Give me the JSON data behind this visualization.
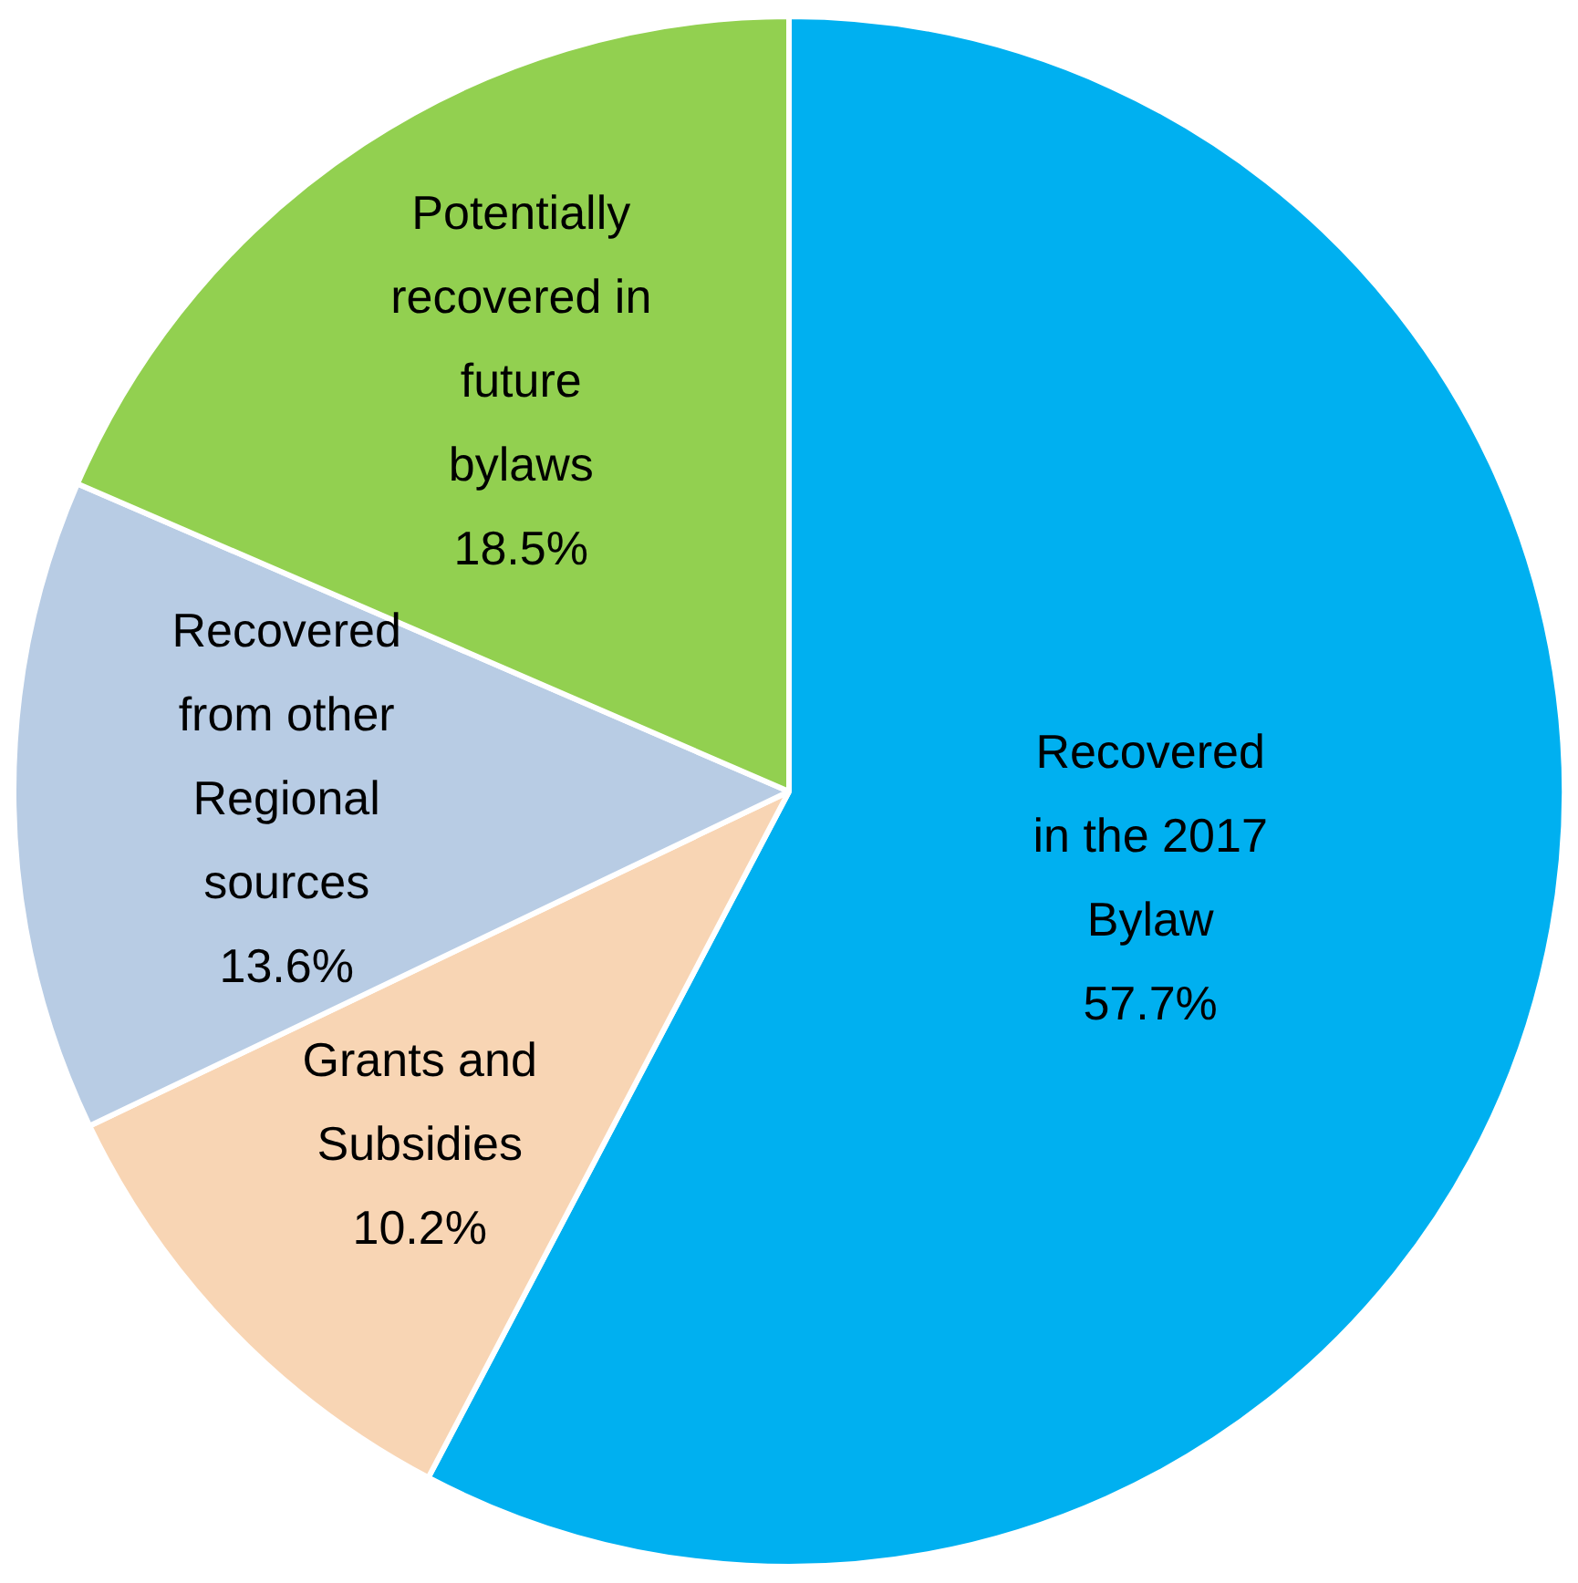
{
  "chart_data": {
    "type": "pie",
    "categories": [
      "Recovered\nin the 2017\nBylaw",
      "Grants and\nSubsidies",
      "Recovered\nfrom other\nRegional\nsources",
      "Potentially\nrecovered in\nfuture\nbylaws"
    ],
    "values": [
      57.7,
      10.2,
      13.6,
      18.5
    ],
    "colors": [
      "#00b0f0",
      "#f8d5b4",
      "#b8cce4",
      "#92d050"
    ],
    "value_labels": [
      "57.7%",
      "10.2%",
      "13.6%",
      "18.5%"
    ],
    "legend": false
  }
}
